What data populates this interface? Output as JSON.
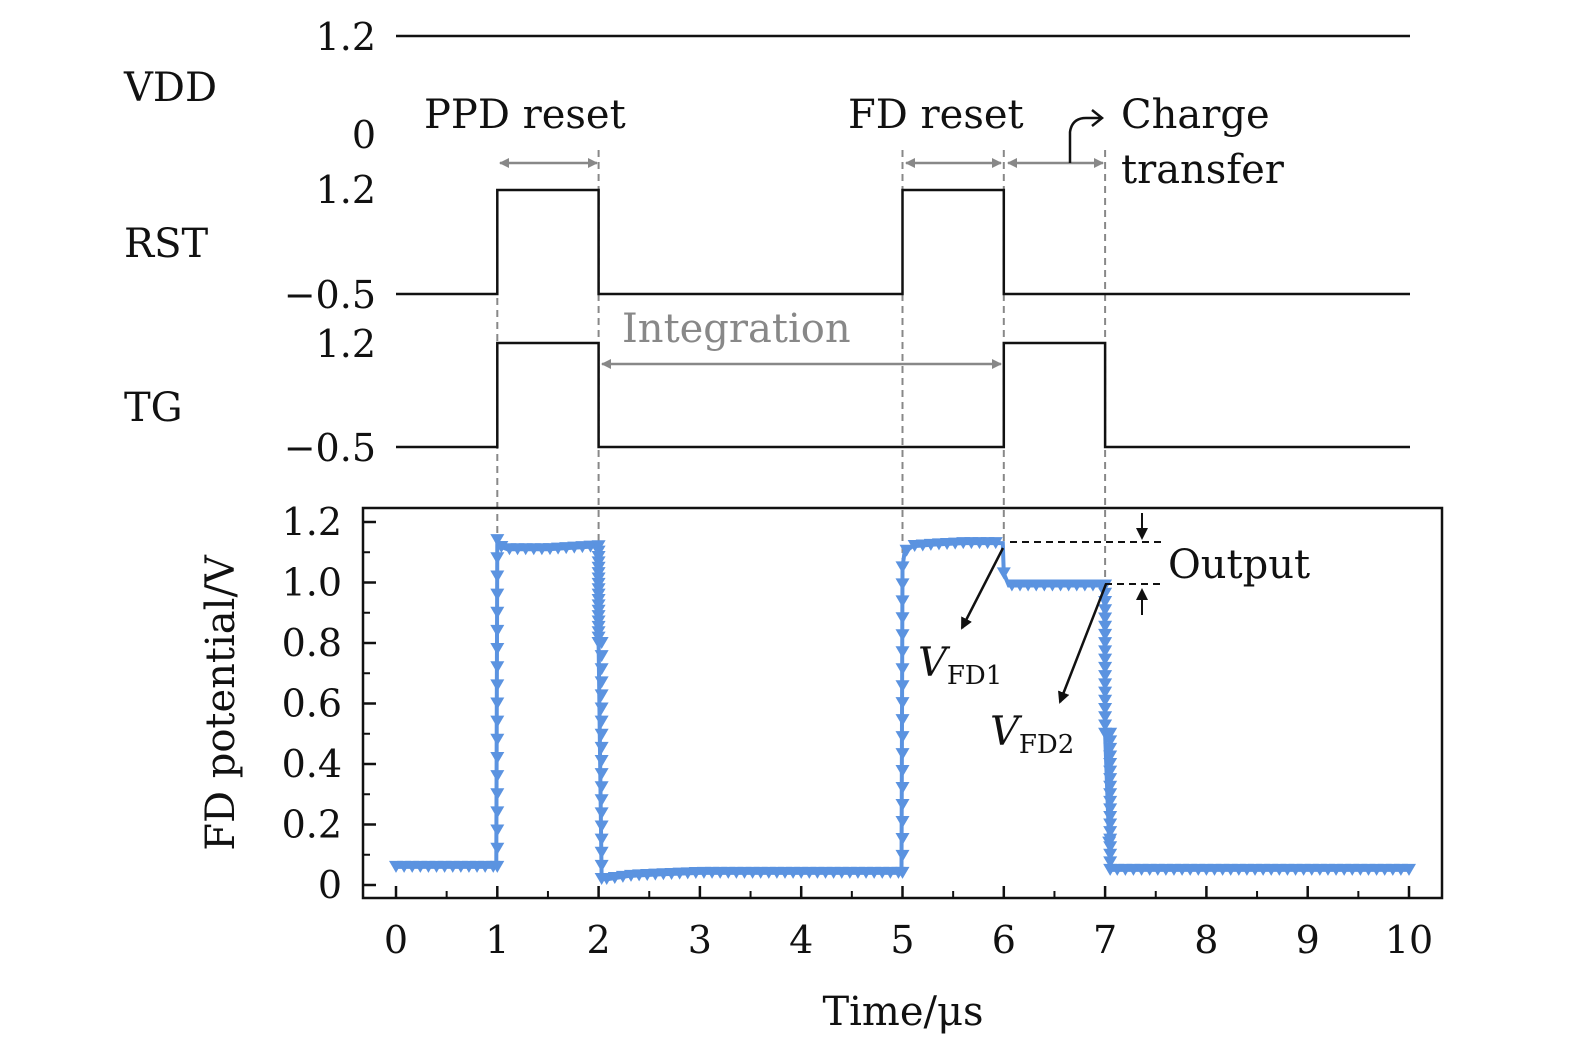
{
  "chart_data": {
    "type": "line",
    "xlabel": "Time/μs",
    "ylabel": "FD potential/V",
    "xlim": [
      0,
      10
    ],
    "ylim": [
      0,
      1.2
    ],
    "x_tick_labels": [
      "0",
      "1",
      "2",
      "3",
      "4",
      "5",
      "6",
      "7",
      "8",
      "9",
      "10"
    ],
    "y_tick_labels": [
      "0",
      "0.2",
      "0.4",
      "0.6",
      "0.8",
      "1.0",
      "1.2"
    ],
    "x_axis_breaks": [
      "4-5"
    ],
    "signals": [
      {
        "name": "VDD",
        "high_label": "1.2",
        "low_label": "0",
        "high": 1.2,
        "low": 0,
        "pulses": [
          [
            0,
            10
          ]
        ]
      },
      {
        "name": "RST",
        "high_label": "1.2",
        "low_label": "−0.5",
        "high": 1.2,
        "low": -0.5,
        "pulses": [
          [
            1,
            2
          ],
          [
            5,
            6
          ]
        ]
      },
      {
        "name": "TG",
        "high_label": "1.2",
        "low_label": "−0.5",
        "high": 1.2,
        "low": -0.5,
        "pulses": [
          [
            1,
            2
          ],
          [
            6,
            7
          ]
        ]
      }
    ],
    "series": [
      {
        "color": "#5b93e0",
        "marker": "triangle-down",
        "x": [
          0,
          0.5,
          0.99,
          1.0,
          1.02,
          1.1,
          1.5,
          1.99,
          2.0,
          2.03,
          2.1,
          2.3,
          2.6,
          3,
          4,
          4.99,
          5.0,
          5.02,
          5.1,
          5.3,
          5.6,
          5.99,
          6.0,
          6.05,
          6.1,
          6.5,
          6.99,
          7.0,
          7.05,
          7.1,
          8,
          9,
          10
        ],
        "y": [
          0.06,
          0.06,
          0.06,
          1.14,
          1.12,
          1.11,
          1.11,
          1.12,
          0.8,
          0.02,
          0.02,
          0.03,
          0.035,
          0.04,
          0.04,
          0.04,
          1.05,
          1.1,
          1.12,
          1.125,
          1.13,
          1.13,
          1.03,
          0.99,
          0.99,
          0.99,
          0.99,
          0.5,
          0.05,
          0.05,
          0.05,
          0.05,
          0.05
        ]
      }
    ],
    "annotations": {
      "ppd_reset": "PPD reset",
      "fd_reset": "FD reset",
      "charge_transfer_line1": "Charge",
      "charge_transfer_line2": "transfer",
      "integration": "Integration",
      "output": "Output",
      "vfd1_main": "V",
      "vfd1_sub": "FD1",
      "vfd2_main": "V",
      "vfd2_sub": "FD2"
    },
    "colors": {
      "series": "#5b93e0",
      "guides": "#888888",
      "lines": "#111111"
    }
  }
}
